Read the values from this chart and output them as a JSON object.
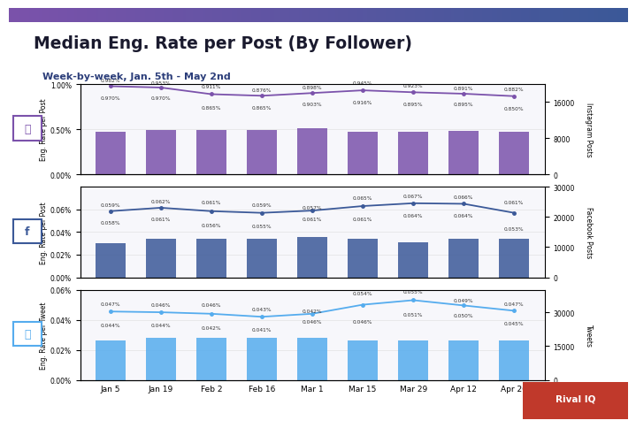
{
  "title": "Median Eng. Rate per Post (By Follower)",
  "subtitle": "Week-by-week, Jan. 5th - May 2nd",
  "x_labels": [
    "Jan 5",
    "Jan 19",
    "Feb 2",
    "Feb 16",
    "Mar 1",
    "Mar 15",
    "Mar 29",
    "Apr 12",
    "Apr 26"
  ],
  "instagram": {
    "line_upper": [
      0.982,
      0.953,
      0.911,
      0.876,
      0.898,
      0.945,
      0.923,
      0.891,
      0.882
    ],
    "line_lower": [
      0.97,
      0.97,
      0.865,
      0.865,
      0.903,
      0.916,
      0.895,
      0.895,
      0.85
    ],
    "bar_heights": [
      0.47,
      0.49,
      0.49,
      0.49,
      0.51,
      0.47,
      0.47,
      0.48,
      0.47
    ],
    "bar_color": "#7B52AB",
    "line_color": "#7B52AB",
    "ylabel": "Eng. Rate per Post",
    "ylabel_right": "Instagram Posts",
    "ylim": [
      0.0,
      1.0
    ],
    "ylim_right": [
      0,
      20000
    ],
    "yticks": [
      0.0,
      0.5,
      1.0
    ],
    "ytick_labels": [
      "0.00%",
      "0.50%",
      "1.00%"
    ]
  },
  "facebook": {
    "line_upper": [
      0.059,
      0.062,
      0.061,
      0.059,
      0.057,
      0.065,
      0.067,
      0.066,
      0.061
    ],
    "line_lower": [
      0.058,
      0.061,
      0.056,
      0.055,
      0.061,
      0.061,
      0.064,
      0.064,
      0.053
    ],
    "bar_heights": [
      0.03,
      0.034,
      0.034,
      0.034,
      0.036,
      0.034,
      0.031,
      0.034,
      0.034
    ],
    "bar_color": "#3B5998",
    "line_color": "#3B5998",
    "ylabel": "Eng. Rate per Post",
    "ylabel_right": "Facebook Posts",
    "ylim": [
      0.0,
      0.08
    ],
    "ylim_right": [
      0,
      30000
    ],
    "yticks": [
      0.0,
      0.02,
      0.04,
      0.06
    ],
    "ytick_labels": [
      "0.00%",
      "0.02%",
      "0.04%",
      "0.06%"
    ]
  },
  "twitter": {
    "line_upper": [
      0.047,
      0.046,
      0.046,
      0.043,
      0.042,
      0.054,
      0.055,
      0.049,
      0.047
    ],
    "line_lower": [
      0.044,
      0.044,
      0.042,
      0.041,
      0.046,
      0.046,
      0.051,
      0.05,
      0.045
    ],
    "bar_heights": [
      0.026,
      0.028,
      0.028,
      0.028,
      0.028,
      0.026,
      0.026,
      0.026,
      0.026
    ],
    "bar_color": "#55ACEE",
    "line_color": "#55ACEE",
    "ylabel": "Eng. Rate per Tweet",
    "ylabel_right": "Tweets",
    "ylim": [
      0.0,
      0.06
    ],
    "ylim_right": [
      0,
      40000
    ],
    "yticks": [
      0.0,
      0.02,
      0.04,
      0.06
    ],
    "ytick_labels": [
      "0.00%",
      "0.02%",
      "0.04%",
      "0.06%"
    ]
  },
  "bg_color": "#FFFFFF",
  "title_color": "#1a1a2e",
  "subtitle_color": "#2c3e7a"
}
